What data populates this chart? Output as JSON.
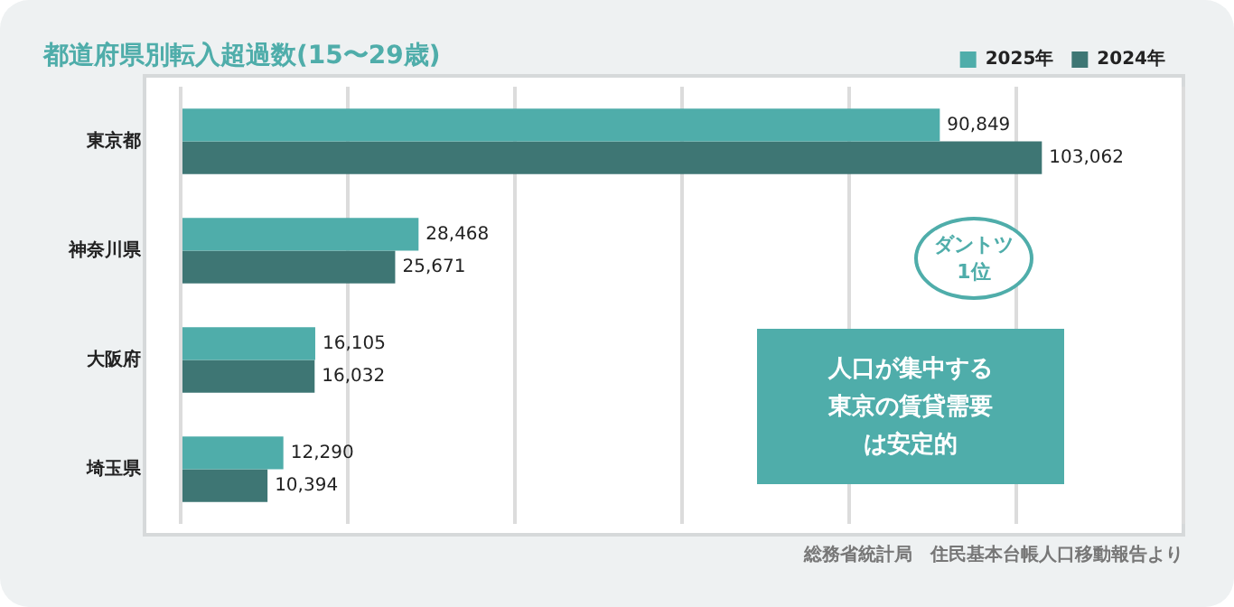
{
  "chart_data": {
    "type": "bar",
    "orientation": "horizontal",
    "title": "都道府県別転入超過数(15〜29歳)",
    "categories": [
      "東京都",
      "神奈川県",
      "大阪府",
      "埼玉県"
    ],
    "series": [
      {
        "name": "2025年",
        "color": "#4fadaa",
        "values": [
          90849,
          28468,
          16105,
          12290
        ],
        "value_labels": [
          "90,849",
          "28,468",
          "16,105",
          "12,290"
        ]
      },
      {
        "name": "2024年",
        "color": "#3e7674",
        "values": [
          103062,
          25671,
          16032,
          10394
        ],
        "value_labels": [
          "103,062",
          "25,671",
          "16,032",
          "10,394"
        ]
      }
    ],
    "grid": "x",
    "legend": "top right",
    "annotations": [
      "ダントツ1位",
      "人口が集中する東京の賃貸需要は安定的",
      "総務省統計局　住民基本台帳人口移動報告より"
    ]
  }
}
